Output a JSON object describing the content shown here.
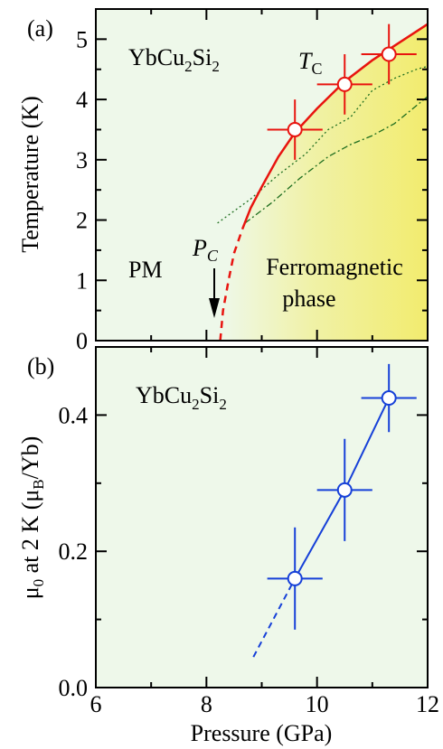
{
  "colors": {
    "panel_bg": "#eef8ea",
    "ferro_fill": "#f2ec6e",
    "tc_red": "#e8140f",
    "moment_blue": "#1640d8",
    "dash_green": "#1f6e1f"
  },
  "chart_data": [
    {
      "type": "scatter",
      "panel_label": "(a)",
      "compound": "YbCu2Si2",
      "xlim": [
        6,
        12
      ],
      "ylim": [
        0,
        5.5
      ],
      "xticks": [
        6,
        8,
        10,
        12
      ],
      "yticks": [
        0,
        1,
        2,
        3,
        4,
        5
      ],
      "ylabel": "Temperature (K)",
      "grid": false,
      "annotations": {
        "tc": "T",
        "tc_sub": "C",
        "pc": "P",
        "pc_sub": "C",
        "pm": "PM",
        "ferro_line1": "Ferromagnetic",
        "ferro_line2": "phase"
      },
      "series": [
        {
          "role": "Tc points",
          "x": [
            9.6,
            10.5,
            11.3
          ],
          "y": [
            3.5,
            4.25,
            4.75
          ],
          "xerr": [
            0.5,
            0.5,
            0.5
          ],
          "yerr": [
            0.5,
            0.5,
            0.5
          ]
        },
        {
          "role": "Tc boundary",
          "x": [
            8.25,
            8.3,
            8.4,
            8.5,
            8.65,
            8.8,
            9.0,
            9.3,
            9.6,
            10.0,
            10.5,
            11.0,
            11.5,
            12.0
          ],
          "y": [
            0.0,
            0.5,
            1.0,
            1.45,
            1.85,
            2.2,
            2.55,
            3.05,
            3.45,
            3.85,
            4.3,
            4.65,
            4.95,
            5.25
          ]
        },
        {
          "role": "green dotted line",
          "x": [
            8.2,
            8.8,
            9.3,
            9.8,
            10.2,
            10.6,
            11.0,
            11.4,
            11.8,
            12.0
          ],
          "y": [
            1.95,
            2.35,
            2.75,
            3.1,
            3.5,
            3.7,
            4.15,
            4.35,
            4.5,
            4.55
          ]
        },
        {
          "role": "green dash-dot line",
          "x": [
            8.7,
            9.2,
            9.7,
            10.2,
            10.6,
            11.0,
            11.4,
            11.8,
            12.0
          ],
          "y": [
            1.95,
            2.3,
            2.7,
            3.05,
            3.25,
            3.4,
            3.6,
            3.9,
            4.05
          ]
        }
      ]
    },
    {
      "type": "scatter",
      "panel_label": "(b)",
      "compound": "YbCu2Si2",
      "xlim": [
        6,
        12
      ],
      "ylim": [
        0,
        0.5
      ],
      "xticks": [
        6,
        8,
        10,
        12
      ],
      "yticks": [
        0.0,
        0.2,
        0.4
      ],
      "ytick_labels": [
        "0.0",
        "0.2",
        "0.4"
      ],
      "xtick_labels": [
        "6",
        "8",
        "10",
        "12"
      ],
      "xlabel": "Pressure (GPa)",
      "ylabel_parts": {
        "mu": "μ",
        "mu_sub": "0",
        "mid": " at 2 K (μ",
        "b_sub": "B",
        "end": "/Yb)"
      },
      "grid": false,
      "series": [
        {
          "role": "moment",
          "x": [
            9.6,
            10.5,
            11.3
          ],
          "y": [
            0.16,
            0.29,
            0.425
          ],
          "xerr": [
            0.5,
            0.5,
            0.5
          ],
          "yerr": [
            0.075,
            0.075,
            0.05
          ]
        },
        {
          "role": "extrapolation",
          "x": [
            8.85,
            9.6
          ],
          "y": [
            0.045,
            0.16
          ]
        }
      ]
    }
  ]
}
